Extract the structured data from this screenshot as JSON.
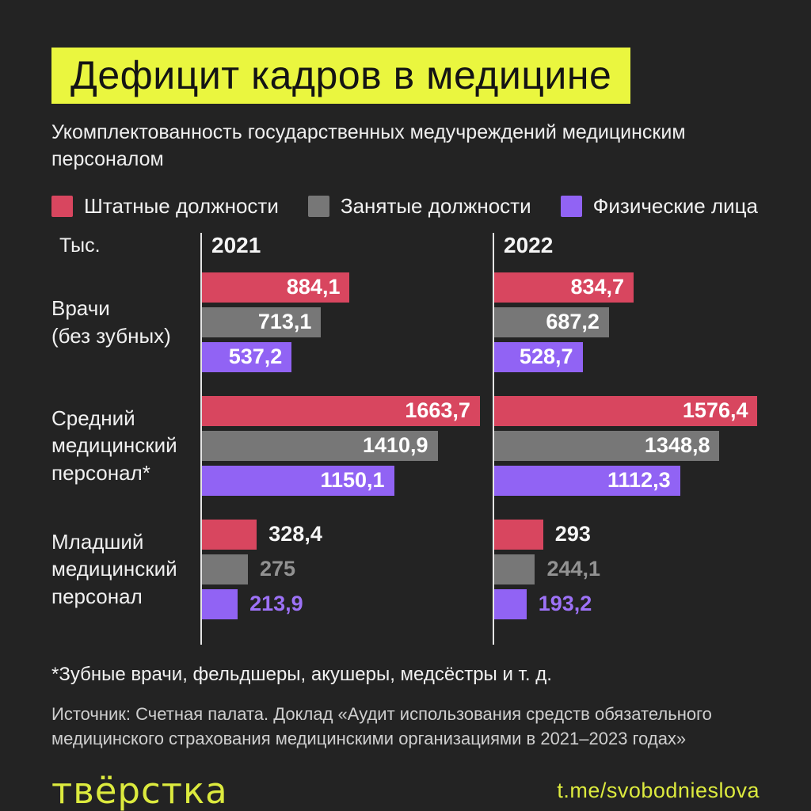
{
  "page": {
    "background_color": "#232323",
    "accent_yellow": "#eaf63f"
  },
  "header": {
    "title": "Дефицит кадров в медицине",
    "subtitle": "Укомплектованность государственных медучреждений медицинским персоналом"
  },
  "chart_data": {
    "type": "bar",
    "orientation": "horizontal",
    "unit": "Тыс.",
    "columns": [
      "2021",
      "2022"
    ],
    "xmax": 1740,
    "grid": false,
    "legend_position": "top",
    "series": [
      {
        "name": "Штатные должности",
        "color": "#d8465f",
        "outside_label_color": "#f5f5f5"
      },
      {
        "name": "Занятые должности",
        "color": "#777777",
        "outside_label_color": "#929292"
      },
      {
        "name": "Физические лица",
        "color": "#9163f4",
        "outside_label_color": "#9d72f7"
      }
    ],
    "groups": [
      {
        "category": "Врачи\n(без зубных)",
        "labels_outside": false,
        "columns": [
          {
            "year": "2021",
            "values": [
              884.1,
              713.1,
              537.2
            ],
            "display": [
              "884,1",
              "713,1",
              "537,2"
            ]
          },
          {
            "year": "2022",
            "values": [
              834.7,
              687.2,
              528.7
            ],
            "display": [
              "834,7",
              "687,2",
              "528,7"
            ]
          }
        ]
      },
      {
        "category": "Средний\nмедицинский\nперсонал*",
        "labels_outside": false,
        "columns": [
          {
            "year": "2021",
            "values": [
              1663.7,
              1410.9,
              1150.1
            ],
            "display": [
              "1663,7",
              "1410,9",
              "1150,1"
            ]
          },
          {
            "year": "2022",
            "values": [
              1576.4,
              1348.8,
              1112.3
            ],
            "display": [
              "1576,4",
              "1348,8",
              "1112,3"
            ]
          }
        ]
      },
      {
        "category": "Младший\nмедицинский\nперсонал",
        "labels_outside": true,
        "columns": [
          {
            "year": "2021",
            "values": [
              328.4,
              275,
              213.9
            ],
            "display": [
              "328,4",
              "275",
              "213,9"
            ]
          },
          {
            "year": "2022",
            "values": [
              293,
              244.1,
              193.2
            ],
            "display": [
              "293",
              "244,1",
              "193,2"
            ]
          }
        ]
      }
    ]
  },
  "footnote": "*Зубные врачи, фельдшеры, акушеры, медсёстры и т. д.",
  "source": "Источник: Счетная палата. Доклад «Аудит использования средств обязательного медицинского страхования медицинскими организациями в 2021–2023 годах»",
  "footer": {
    "logo_text": "твёрстка",
    "telegram": "t.me/svobodnieslova"
  }
}
